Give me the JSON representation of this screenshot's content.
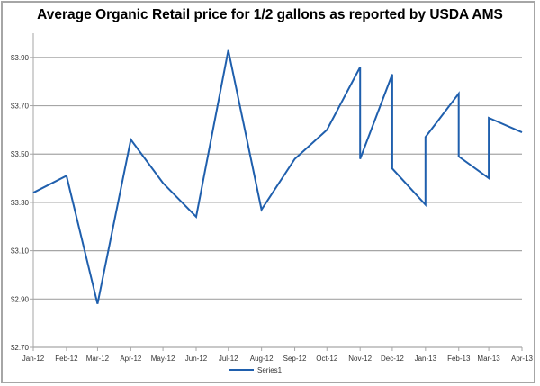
{
  "chart_data": {
    "type": "line",
    "title": "Average Organic Retail price for 1/2 gallons as reported by USDA AMS",
    "xlabel": "",
    "ylabel": "",
    "x_axis": "date (monthly)",
    "x_ticks": [
      "Jan-12",
      "Feb-12",
      "Mar-12",
      "Apr-12",
      "May-12",
      "Jun-12",
      "Jul-12",
      "Aug-12",
      "Sep-12",
      "Oct-12",
      "Nov-12",
      "Dec-12",
      "Jan-13",
      "Feb-13",
      "Mar-13",
      "Apr-13"
    ],
    "y_ticks": [
      "$2.70",
      "$2.90",
      "$3.10",
      "$3.30",
      "$3.50",
      "$3.70",
      "$3.90"
    ],
    "ylim": [
      2.7,
      4.0
    ],
    "grid": "horizontal",
    "legend": "bottom",
    "series": [
      {
        "name": "Series1",
        "color": "#1f5fad",
        "x": [
          "Jan-12",
          "Feb-12",
          "Mar-12",
          "Apr-12",
          "May-12",
          "Jun-12",
          "Jul-12",
          "Aug-12",
          "Sep-12",
          "Oct-12",
          "Nov-12",
          "Nov-12",
          "Dec-12",
          "Dec-12",
          "Jan-13",
          "Jan-13",
          "Feb-13",
          "Feb-13",
          "Mar-13",
          "Mar-13",
          "Apr-13"
        ],
        "values": [
          3.34,
          3.41,
          2.88,
          3.56,
          3.38,
          3.24,
          3.93,
          3.27,
          3.48,
          3.6,
          3.86,
          3.48,
          3.83,
          3.44,
          3.29,
          3.57,
          3.75,
          3.49,
          3.4,
          3.65,
          3.59
        ]
      }
    ]
  }
}
